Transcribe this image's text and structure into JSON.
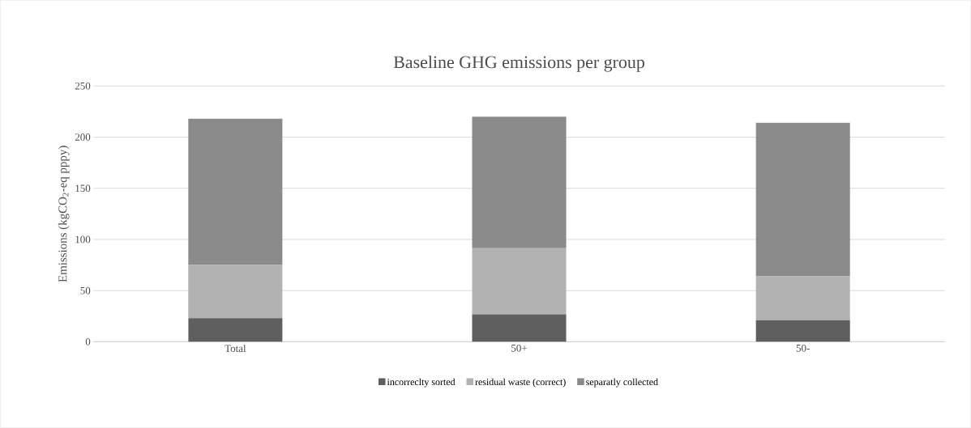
{
  "chart_data": {
    "type": "bar",
    "stacked": true,
    "title": "Baseline GHG emissions per group",
    "ylabel": "Emissions (kgCO$_{2}$-eq pppy)",
    "categories": [
      "Total",
      "50+",
      "50-"
    ],
    "series": [
      {
        "name": "incorreclty sorted",
        "color": "#5f5f5f",
        "values": [
          23,
          27,
          21
        ]
      },
      {
        "name": "residual waste (correct)",
        "color": "#b2b2b2",
        "values": [
          52,
          64.5,
          43
        ]
      },
      {
        "name": "separatly collected",
        "color": "#8a8a8a",
        "values": [
          143,
          128.5,
          150
        ]
      }
    ],
    "ylim": [
      0,
      250
    ],
    "yticks": [
      0,
      50,
      100,
      150,
      200,
      250
    ],
    "grid": "y",
    "legend": "bottom"
  }
}
